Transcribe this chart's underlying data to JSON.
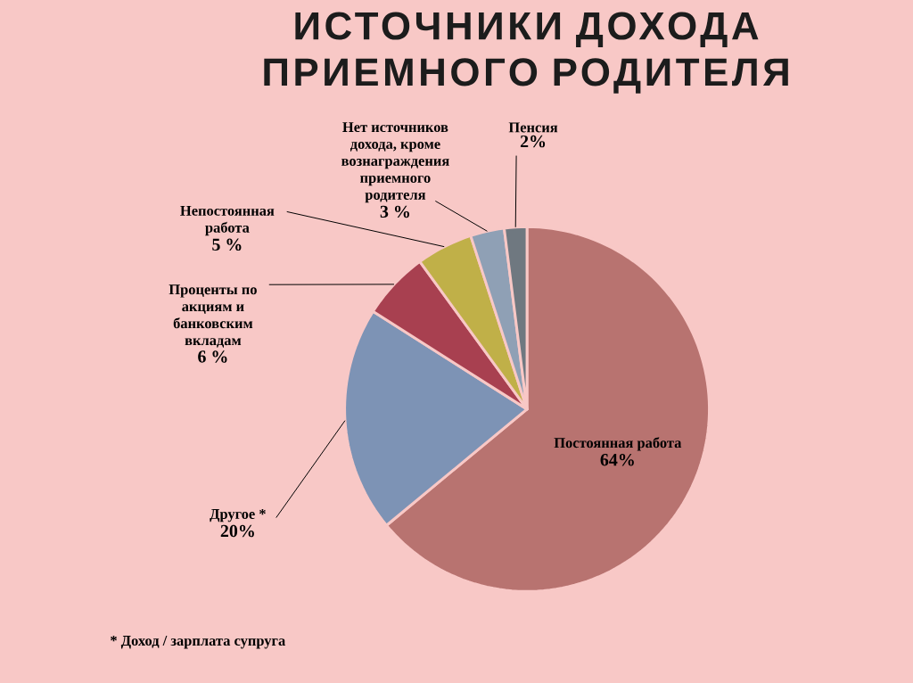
{
  "chart_data": {
    "type": "pie",
    "title": "ИСТОЧНИКИ ДОХОДА ПРИЕМНОГО РОДИТЕЛЯ",
    "categories": [
      "Постоянная работа",
      "Другое *",
      "Проценты по акциям и банковским вкладам",
      "Непостоянная работа",
      "Нет источников дохода, кроме вознаграждения приемного родителя",
      "Пенсия"
    ],
    "values": [
      64,
      20,
      6,
      5,
      3,
      2
    ],
    "colors": [
      "#b87370",
      "#7d93b5",
      "#a84050",
      "#c0b048",
      "#8fa0b5",
      "#6f7880"
    ],
    "value_labels": [
      "64%",
      "20%",
      "6 %",
      "5 %",
      "3 %",
      "2%"
    ],
    "annotations": [
      "* Доход / зарплата супруга"
    ]
  }
}
